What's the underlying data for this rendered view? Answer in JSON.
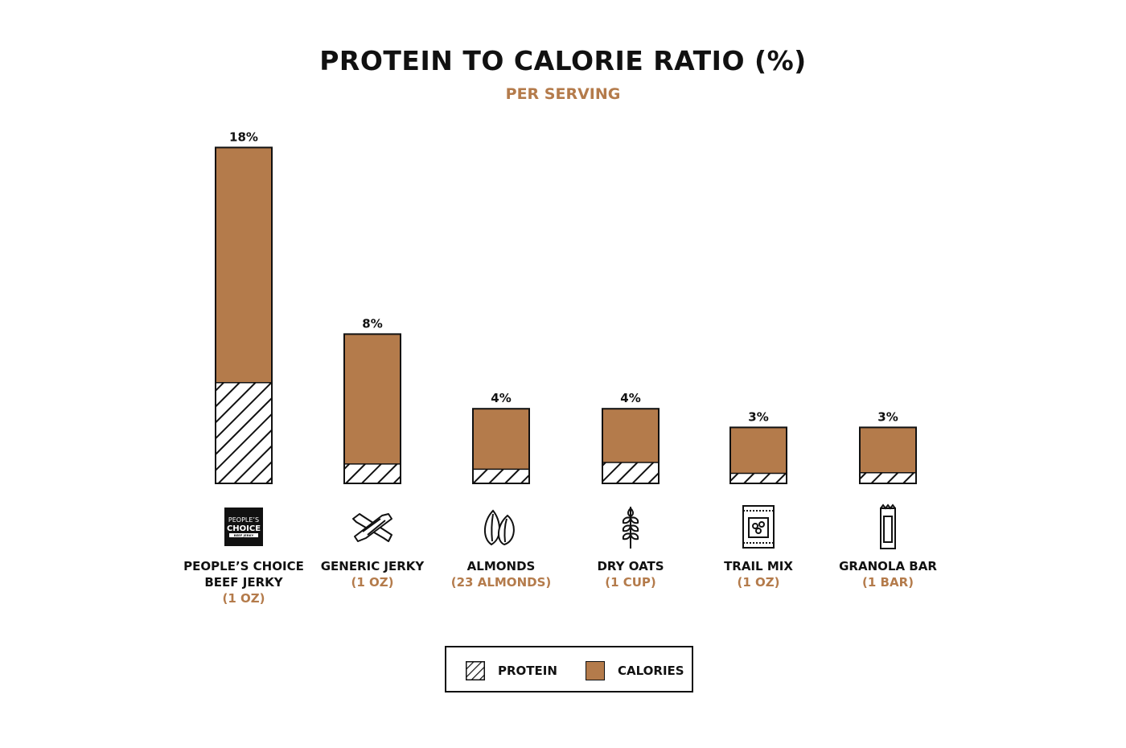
{
  "title": "PROTEIN TO CALORIE RATIO (%)",
  "subtitle": "PER SERVING",
  "colors": {
    "calories": "#b47b4b",
    "accent": "#b47b4b",
    "stroke": "#111111"
  },
  "legend": {
    "protein_label": "PROTEIN",
    "calories_label": "CALORIES"
  },
  "chart_data": {
    "type": "bar",
    "stacked": true,
    "categories": [
      "PEOPLE’S CHOICE BEEF JERKY",
      "GENERIC JERKY",
      "ALMONDS",
      "DRY OATS",
      "TRAIL MIX",
      "GRANOLA BAR"
    ],
    "servings": [
      "(1 OZ)",
      "(1 OZ)",
      "(23 ALMONDS)",
      "(1 CUP)",
      "(1 OZ)",
      "(1 BAR)"
    ],
    "ratio_labels": [
      "18%",
      "8%",
      "4%",
      "4%",
      "3%",
      "3%"
    ],
    "ratios": [
      18,
      8,
      4,
      4,
      3,
      3
    ],
    "protein_fraction": [
      0.3,
      0.13,
      0.19,
      0.28,
      0.18,
      0.19
    ],
    "icons": [
      "peoples-choice-logo",
      "jerky-strips-icon",
      "almonds-icon",
      "wheat-icon",
      "trail-mix-bag-icon",
      "granola-bar-icon"
    ],
    "series": [
      {
        "name": "PROTEIN",
        "pattern": "hatch"
      },
      {
        "name": "CALORIES",
        "color": "#b47b4b"
      }
    ],
    "legend_position": "bottom-center",
    "grid": false
  },
  "logo_text": {
    "line1": "PEOPLE’S",
    "line2": "CHOICE",
    "line3": "BEEF JERKY"
  }
}
